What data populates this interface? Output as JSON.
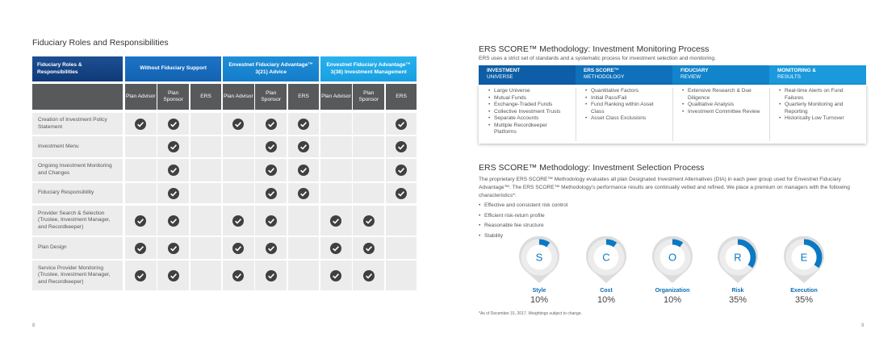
{
  "left_page": {
    "title": "Fiduciary Roles and Responsibilities",
    "page_number": "8",
    "table": {
      "headers": [
        "Fiduciary Roles & Responsibilities",
        "Without Fiduciary Support",
        "Envestnet Fiduciary Advantage™ 3(21) Advice",
        "Envestnet Fiduciary Advantage™ 3(38) Investment Management"
      ],
      "subheaders": [
        "Plan Advisor",
        "Plan Sponsor",
        "ERS",
        "Plan Advisor",
        "Plan Sponsor",
        "ERS",
        "Plan Advisor",
        "Plan Sponsor",
        "ERS"
      ],
      "rows": [
        {
          "label": "Creation of Investment Policy Statement",
          "checks": [
            true,
            true,
            false,
            true,
            true,
            true,
            false,
            false,
            true
          ]
        },
        {
          "label": "Investment Menu",
          "checks": [
            false,
            true,
            false,
            false,
            true,
            true,
            false,
            false,
            true
          ]
        },
        {
          "label": "Ongoing Investment Monitoring and Changes",
          "checks": [
            false,
            true,
            false,
            false,
            true,
            true,
            false,
            false,
            true
          ]
        },
        {
          "label": "Fiduciary Responsibility",
          "checks": [
            false,
            true,
            false,
            false,
            true,
            true,
            false,
            false,
            true
          ]
        },
        {
          "label": "Provider Search & Selection (Trustee, Investment Manager, and Recordkeeper)",
          "checks": [
            true,
            true,
            false,
            true,
            true,
            false,
            true,
            true,
            false
          ]
        },
        {
          "label": "Plan Design",
          "checks": [
            true,
            true,
            false,
            true,
            true,
            false,
            true,
            true,
            false
          ]
        },
        {
          "label": "Service Provider Monitoring (Trustee, Investment Manager, and Recordkeeper)",
          "checks": [
            true,
            true,
            false,
            true,
            true,
            false,
            true,
            true,
            false
          ]
        }
      ]
    }
  },
  "right_page": {
    "page_number": "9",
    "monitoring": {
      "title": "ERS SCORE™ Methodology: Investment Monitoring Process",
      "subtitle": "ERS uses a strict set of standards and a systematic process for investment selection and monitoring.",
      "steps": [
        {
          "title": "INVESTMENT",
          "subtitle": "UNIVERSE",
          "items": [
            "Large Universe",
            "Mutual Funds",
            "Exchange-Traded Funds",
            "Collective Investment Trusts",
            "Separate Accounts",
            "Multiple Recordkeeper Platforms"
          ]
        },
        {
          "title": "ERS SCORE™",
          "subtitle": "METHODOLOGY",
          "items": [
            "Quantitative Factors",
            "Initial Pass/Fail",
            "Fund Ranking within Asset Class",
            "Asset Class Exclusions"
          ]
        },
        {
          "title": "FIDUCIARY",
          "subtitle": "REVIEW",
          "items": [
            "Extensive Research & Due Diligence",
            "Qualitative Analysis",
            "Investment Committee Review"
          ]
        },
        {
          "title": "MONITORING &",
          "subtitle": "RESULTS",
          "items": [
            "Real-time Alerts on Fund Failures",
            "Quarterly Monitoring and Reporting",
            "Historically Low Turnover"
          ]
        }
      ]
    },
    "selection": {
      "title": "ERS SCORE™ Methodology: Investment Selection Process",
      "paragraph": "The proprietary ERS SCORE™ Methodology evaluates all plan Designated Investment Alternatives (DIA) in each peer group used for Envestnet Fiduciary Advantage™. The ERS SCORE™ Methodology's performance results are continually vetted and refined. We place a premium on managers with the following characteristics*:",
      "criteria": [
        "Effective and consistent risk control",
        "Efficient risk-return profile",
        "Reasonable fee structure",
        "Stability"
      ],
      "chart_data": {
        "type": "donut",
        "categories": [
          "Style",
          "Cost",
          "Organization",
          "Risk",
          "Execution"
        ],
        "letters": [
          "S",
          "C",
          "O",
          "R",
          "E"
        ],
        "values": [
          10,
          10,
          10,
          35,
          35
        ],
        "value_labels": [
          "10%",
          "10%",
          "10%",
          "35%",
          "35%"
        ],
        "color": "#0a78c2"
      },
      "footnote": "*As of December 31, 2017. Weightings subject to change."
    }
  }
}
